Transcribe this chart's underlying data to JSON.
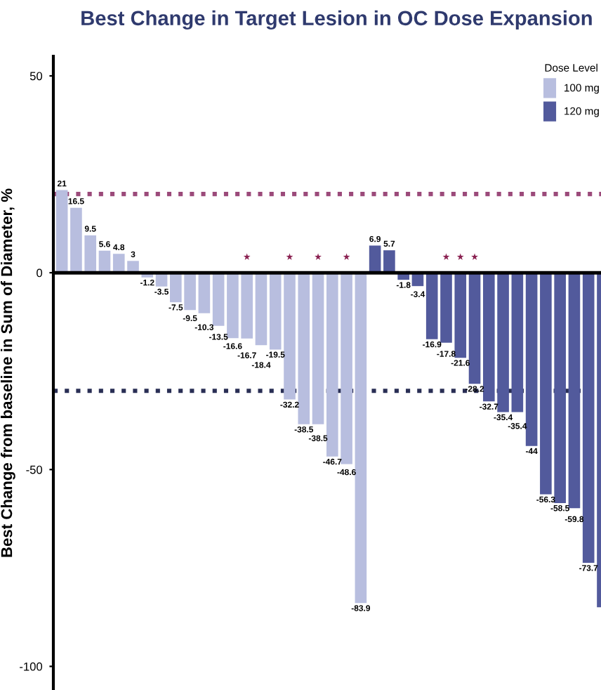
{
  "chart_data": {
    "type": "bar",
    "title": "Best Change in Target Lesion in OC Dose Expansion",
    "ylabel": "Best Change from baseline in Sum of Diameter, %",
    "legend_title": "Dose Level",
    "categories": [
      null,
      null,
      null,
      null,
      null,
      null,
      null,
      null,
      null,
      null,
      null,
      null,
      null,
      null,
      null,
      null,
      null,
      null,
      null,
      null,
      null,
      null,
      null,
      null,
      null,
      null,
      null,
      null,
      null,
      null,
      null,
      null,
      null,
      null,
      null,
      null,
      null,
      null,
      null
    ],
    "series": [
      {
        "name": "100 mg",
        "color": "#b8bedf",
        "values": [
          21,
          16.5,
          9.5,
          5.6,
          4.8,
          3,
          -1.2,
          -3.5,
          -7.5,
          -9.5,
          -10.3,
          -13.5,
          -16.6,
          -16.7,
          -18.4,
          -19.5,
          -32.2,
          -38.5,
          -38.5,
          -46.7,
          -48.6,
          -83.9,
          null,
          null,
          null,
          null,
          null,
          null,
          null,
          null,
          null,
          null,
          null,
          null,
          null,
          null,
          null,
          null,
          null
        ],
        "value_labels": [
          "21",
          "16.5",
          "9.5",
          "5.6",
          "4.8",
          "3",
          "-1.2",
          "-3.5",
          "-7.5",
          "-9.5",
          "-10.3",
          "-13.5",
          "-16.6",
          "-16.7",
          "-18.4",
          "-19.5",
          "-32.2",
          "-38.5",
          "-38.5",
          "-46.7",
          "-48.6",
          "-83.9",
          null,
          null,
          null,
          null,
          null,
          null,
          null,
          null,
          null,
          null,
          null,
          null,
          null,
          null,
          null,
          null,
          null
        ]
      },
      {
        "name": "120 mg",
        "color": "#525a9c",
        "values": [
          null,
          null,
          null,
          null,
          null,
          null,
          null,
          null,
          null,
          null,
          null,
          null,
          null,
          null,
          null,
          null,
          null,
          null,
          null,
          null,
          null,
          null,
          6.9,
          5.7,
          -1.8,
          -3.4,
          -16.9,
          -17.8,
          -21.6,
          -28.2,
          -32.7,
          -35.4,
          -35.4,
          -44,
          -56.3,
          -58.5,
          -59.8,
          -73.7,
          -85
        ],
        "value_labels": [
          null,
          null,
          null,
          null,
          null,
          null,
          null,
          null,
          null,
          null,
          null,
          null,
          null,
          null,
          null,
          null,
          null,
          null,
          null,
          null,
          null,
          null,
          "6.9",
          "5.7",
          "-1.8",
          "-3.4",
          "-16.9",
          "-17.8",
          "-21.6",
          "-28.2",
          "-32.7",
          "-35.4",
          "-35.4",
          "-44",
          "-56.3",
          "-58.5",
          "-59.8",
          "-73.7",
          null
        ]
      },
      {
        "type": "scatter",
        "color": "#8b2252",
        "marker": "star",
        "values": [
          null,
          null,
          null,
          null,
          null,
          null,
          null,
          null,
          null,
          null,
          null,
          null,
          null,
          4,
          null,
          null,
          4,
          null,
          4,
          null,
          4,
          null,
          null,
          null,
          null,
          null,
          null,
          4,
          4,
          4,
          null,
          null,
          null,
          null,
          null,
          null,
          null,
          null,
          null
        ]
      }
    ],
    "ylim": [
      -106,
      55
    ],
    "yticks": [
      50,
      0,
      -50,
      -100
    ],
    "ref_lines": [
      {
        "axis": "y",
        "value": 20,
        "color": "#9b4a7a",
        "line_style": "dotted"
      },
      {
        "axis": "y",
        "value": -30,
        "color": "#2a2f55",
        "line_style": "dotted"
      },
      {
        "axis": "y",
        "value": 0,
        "color": "#000000",
        "line_style": "solid"
      }
    ],
    "tick_labels": "y",
    "legend": "top right",
    "grid": false
  }
}
